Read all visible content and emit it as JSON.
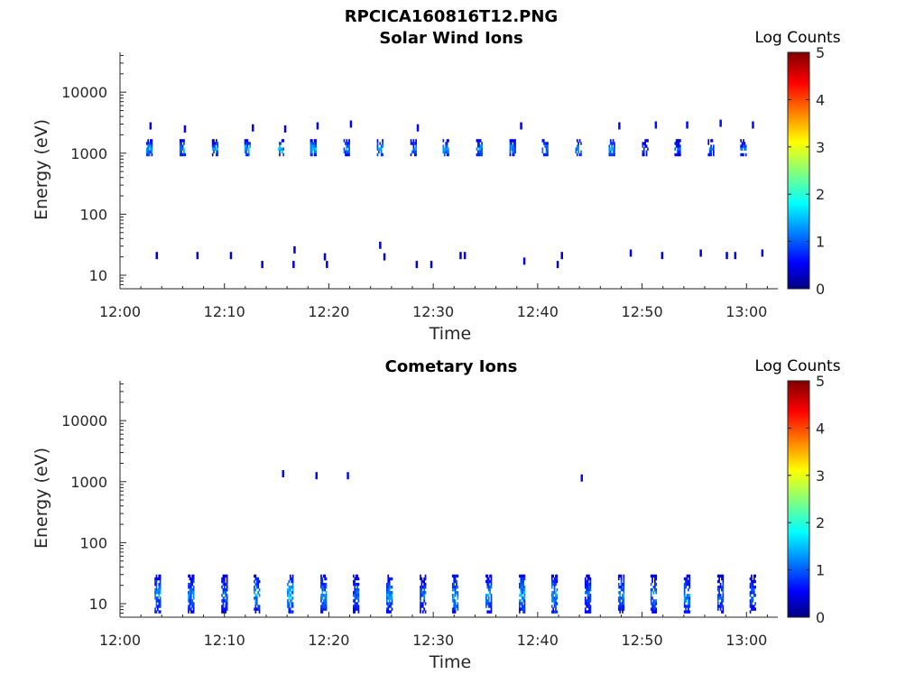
{
  "figure_title": "RPCICA160816T12.PNG",
  "colormap": {
    "stops": [
      "#00007f",
      "#0000ff",
      "#00ffff",
      "#ffff00",
      "#ff0000",
      "#7f0000"
    ]
  },
  "chart_data": [
    {
      "type": "heatmap",
      "title": "Solar Wind Ions",
      "xlabel": "Time",
      "ylabel": "Energy (eV)",
      "y_scale": "log",
      "grid": false,
      "xlim": [
        "12:00",
        "13:03"
      ],
      "ylim": [
        6,
        45000
      ],
      "x_ticks": [
        "12:00",
        "12:10",
        "12:20",
        "12:30",
        "12:40",
        "12:50",
        "13:00"
      ],
      "y_ticks": [
        "10",
        "100",
        "1000",
        "10000"
      ],
      "colorbar": {
        "label": "Log Counts",
        "range": [
          0,
          5
        ],
        "ticks": [
          "0",
          "1",
          "2",
          "3",
          "4",
          "5"
        ]
      },
      "bursts": {
        "times": [
          "12:02.8",
          "12:06.0",
          "12:09.1",
          "12:12.2",
          "12:15.4",
          "12:18.5",
          "12:21.7",
          "12:24.9",
          "12:28.1",
          "12:31.2",
          "12:34.4",
          "12:37.6",
          "12:40.7",
          "12:43.9",
          "12:47.1",
          "12:50.3",
          "12:53.4",
          "12:56.6",
          "12:59.7"
        ],
        "energy_range_eV": [
          900,
          1700
        ],
        "log_counts": [
          1.3,
          1.3,
          1.2,
          1.3,
          1.3,
          1.3,
          1.2,
          1.2,
          1.1,
          1.2,
          1.2,
          1.2,
          1.1,
          1.2,
          1.2,
          0.8,
          0.9,
          0.9,
          1.0
        ]
      },
      "secondary_points": [
        {
          "time": "12:02.9",
          "energy_eV": 2800,
          "log_counts": 0.5
        },
        {
          "time": "12:06.2",
          "energy_eV": 2500,
          "log_counts": 0.5
        },
        {
          "time": "12:12.7",
          "energy_eV": 2600,
          "log_counts": 0.5
        },
        {
          "time": "12:15.8",
          "energy_eV": 2500,
          "log_counts": 0.5
        },
        {
          "time": "12:18.9",
          "energy_eV": 2800,
          "log_counts": 0.5
        },
        {
          "time": "12:22.1",
          "energy_eV": 3000,
          "log_counts": 0.5
        },
        {
          "time": "12:28.5",
          "energy_eV": 2600,
          "log_counts": 0.5
        },
        {
          "time": "12:38.4",
          "energy_eV": 2800,
          "log_counts": 0.5
        },
        {
          "time": "12:47.8",
          "energy_eV": 2800,
          "log_counts": 0.6
        },
        {
          "time": "12:51.3",
          "energy_eV": 2900,
          "log_counts": 0.6
        },
        {
          "time": "12:54.3",
          "energy_eV": 2900,
          "log_counts": 0.6
        },
        {
          "time": "12:57.5",
          "energy_eV": 3100,
          "log_counts": 0.6
        },
        {
          "time": "13:00.6",
          "energy_eV": 2900,
          "log_counts": 0.6
        }
      ],
      "low_energy_points": [
        {
          "time": "12:03.5",
          "energy_eV": 21,
          "log_counts": 0.4
        },
        {
          "time": "12:07.4",
          "energy_eV": 21,
          "log_counts": 0.4
        },
        {
          "time": "12:10.6",
          "energy_eV": 21,
          "log_counts": 0.4
        },
        {
          "time": "12:13.6",
          "energy_eV": 15,
          "log_counts": 0.4
        },
        {
          "time": "12:16.6",
          "energy_eV": 15,
          "log_counts": 0.4
        },
        {
          "time": "12:16.7",
          "energy_eV": 26,
          "log_counts": 0.4
        },
        {
          "time": "12:19.6",
          "energy_eV": 20,
          "log_counts": 0.4
        },
        {
          "time": "12:19.8",
          "energy_eV": 15,
          "log_counts": 0.4
        },
        {
          "time": "12:24.9",
          "energy_eV": 31,
          "log_counts": 0.4
        },
        {
          "time": "12:25.3",
          "energy_eV": 20,
          "log_counts": 0.4
        },
        {
          "time": "12:28.4",
          "energy_eV": 15,
          "log_counts": 0.4
        },
        {
          "time": "12:29.8",
          "energy_eV": 15,
          "log_counts": 0.4
        },
        {
          "time": "12:32.6",
          "energy_eV": 21,
          "log_counts": 0.4
        },
        {
          "time": "12:33.0",
          "energy_eV": 21,
          "log_counts": 0.4
        },
        {
          "time": "12:38.7",
          "energy_eV": 17,
          "log_counts": 0.4
        },
        {
          "time": "12:41.9",
          "energy_eV": 15,
          "log_counts": 0.4
        },
        {
          "time": "12:42.3",
          "energy_eV": 21,
          "log_counts": 0.4
        },
        {
          "time": "12:48.9",
          "energy_eV": 23,
          "log_counts": 0.4
        },
        {
          "time": "12:51.9",
          "energy_eV": 21,
          "log_counts": 0.4
        },
        {
          "time": "12:55.6",
          "energy_eV": 23,
          "log_counts": 0.4
        },
        {
          "time": "12:58.1",
          "energy_eV": 21,
          "log_counts": 0.4
        },
        {
          "time": "12:58.9",
          "energy_eV": 21,
          "log_counts": 0.4
        },
        {
          "time": "13:01.5",
          "energy_eV": 23,
          "log_counts": 0.4
        }
      ]
    },
    {
      "type": "heatmap",
      "title": "Cometary Ions",
      "xlabel": "Time",
      "ylabel": "Energy (eV)",
      "y_scale": "log",
      "grid": false,
      "xlim": [
        "12:00",
        "13:03"
      ],
      "ylim": [
        6,
        45000
      ],
      "x_ticks": [
        "12:00",
        "12:10",
        "12:20",
        "12:30",
        "12:40",
        "12:50",
        "13:00"
      ],
      "y_ticks": [
        "10",
        "100",
        "1000",
        "10000"
      ],
      "colorbar": {
        "label": "Log Counts",
        "range": [
          0,
          5
        ],
        "ticks": [
          "0",
          "1",
          "2",
          "3",
          "4",
          "5"
        ]
      },
      "bursts": {
        "times": [
          "12:03.6",
          "12:06.8",
          "12:10.0",
          "12:13.1",
          "12:16.3",
          "12:19.5",
          "12:22.6",
          "12:25.8",
          "12:29.0",
          "12:32.1",
          "12:35.3",
          "12:38.5",
          "12:41.6",
          "12:44.8",
          "12:48.0",
          "12:51.1",
          "12:54.3",
          "12:57.5",
          "13:00.6"
        ],
        "energy_range_eV": [
          7,
          30
        ],
        "log_counts": [
          1.2,
          1.1,
          1.0,
          1.2,
          1.4,
          1.2,
          1.0,
          1.2,
          1.0,
          1.3,
          1.2,
          1.3,
          1.3,
          1.0,
          1.2,
          1.2,
          1.2,
          1.0,
          1.0
        ]
      },
      "secondary_points": [
        {
          "time": "12:15.6",
          "energy_eV": 1350,
          "log_counts": 0.6
        },
        {
          "time": "12:18.8",
          "energy_eV": 1250,
          "log_counts": 0.6
        },
        {
          "time": "12:21.8",
          "energy_eV": 1250,
          "log_counts": 0.6
        },
        {
          "time": "12:44.2",
          "energy_eV": 1150,
          "log_counts": 0.6
        }
      ],
      "low_energy_points": []
    }
  ]
}
